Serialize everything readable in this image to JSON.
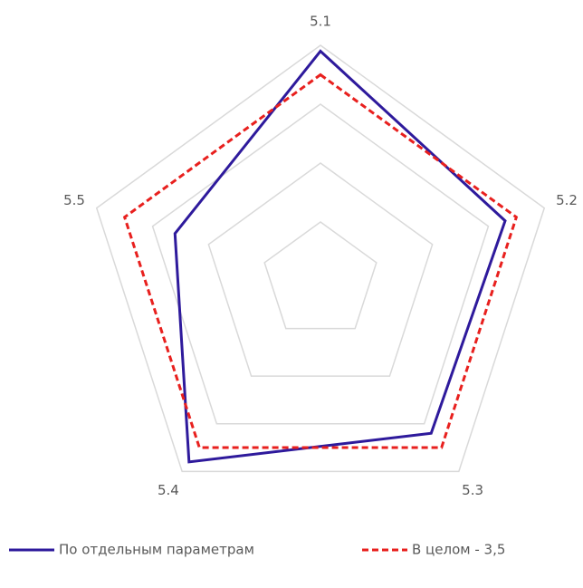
{
  "chart_data": {
    "type": "radar",
    "categories": [
      "5.1",
      "5.2",
      "5.3",
      "5.4",
      "5.5"
    ],
    "rlim": [
      0,
      4
    ],
    "rticks": [
      1,
      2,
      3,
      4
    ],
    "grid": true,
    "legend": "bottom",
    "series": [
      {
        "name": "По отдельным параметрам",
        "color": "#2e1a9c",
        "dash": false,
        "values": [
          3.9,
          3.3,
          3.2,
          3.8,
          2.6
        ]
      },
      {
        "name": "В целом - 3,5",
        "color": "#e8201e",
        "dash": true,
        "values": [
          3.5,
          3.5,
          3.5,
          3.5,
          3.5
        ]
      }
    ]
  }
}
